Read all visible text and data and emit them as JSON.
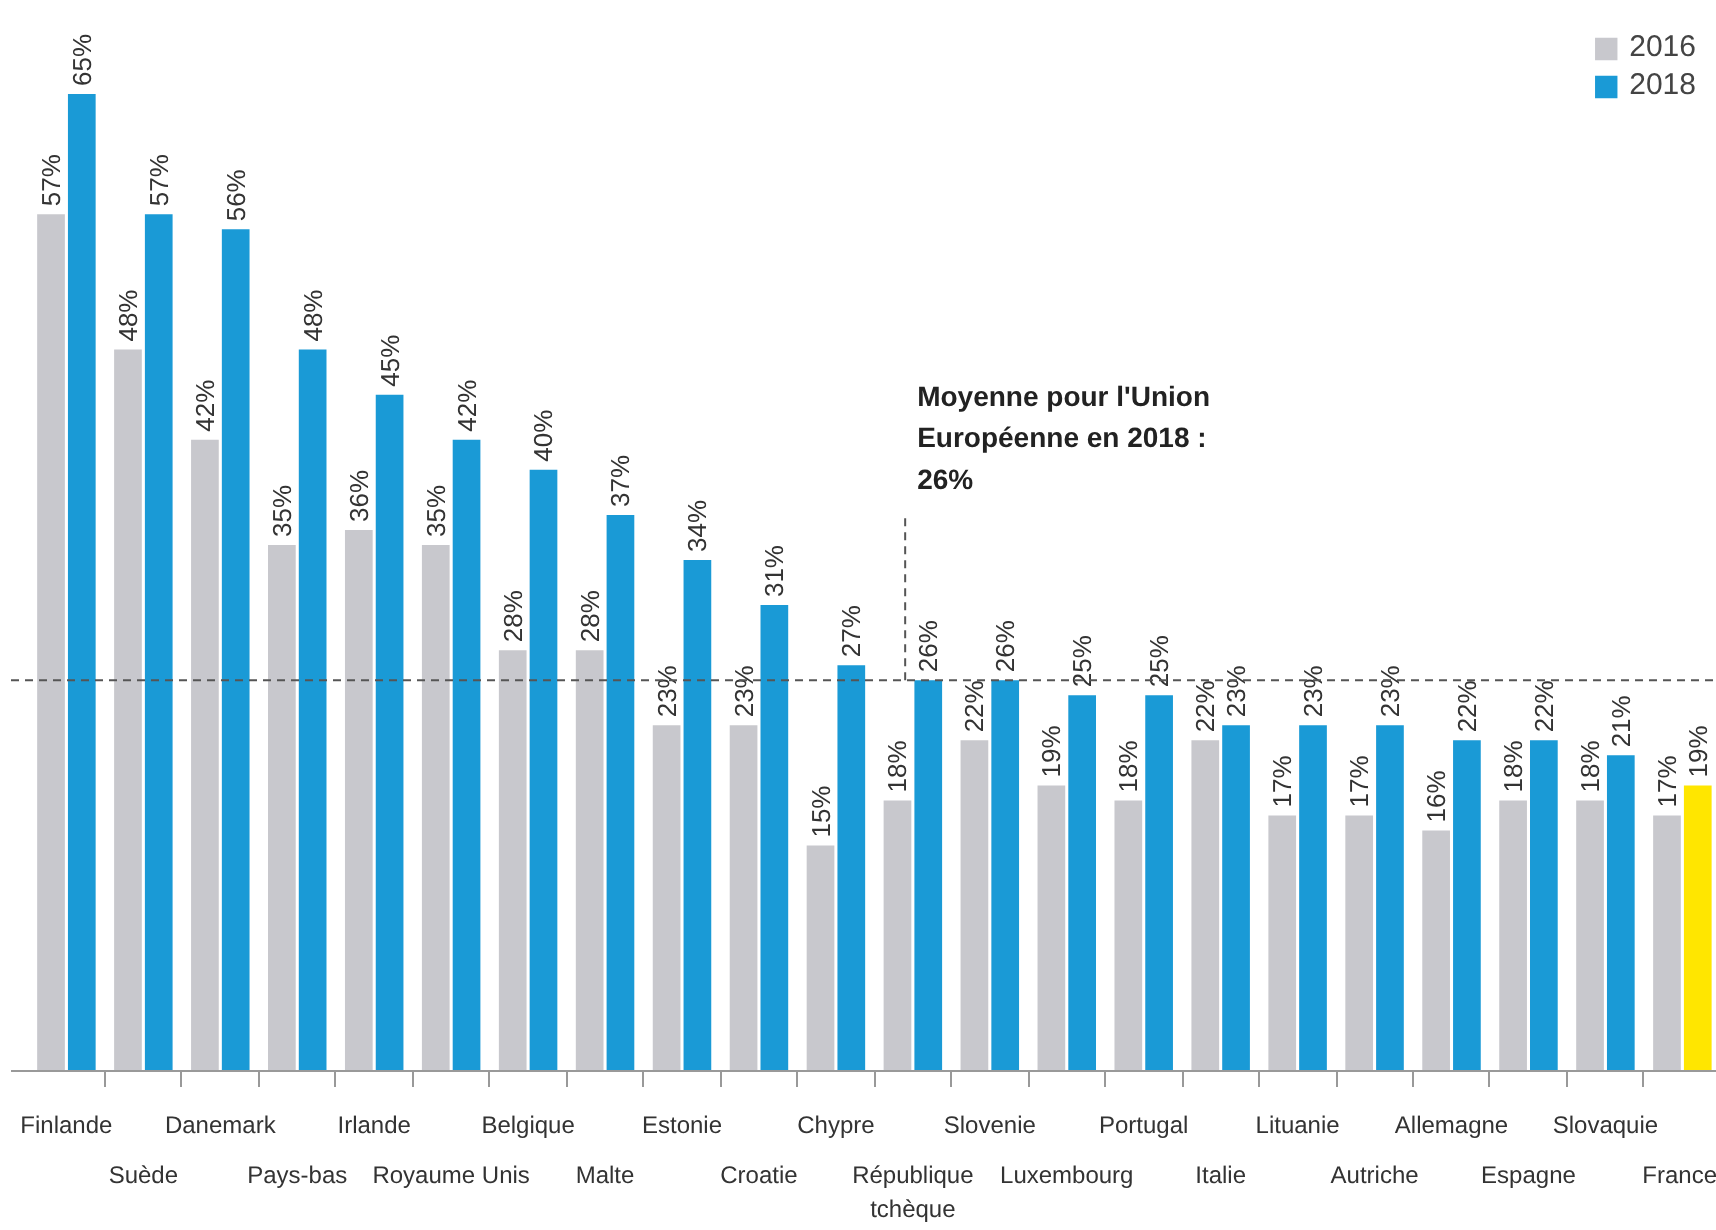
{
  "chart_data": {
    "type": "bar",
    "categories": [
      "Finlande",
      "Suède",
      "Danemark",
      "Pays-bas",
      "Irlande",
      "Royaume Unis",
      "Belgique",
      "Malte",
      "Estonie",
      "Croatie",
      "Chypre",
      "République tchèque",
      "Slovenie",
      "Luxembourg",
      "Portugal",
      "Italie",
      "Lituanie",
      "Autriche",
      "Allemagne",
      "Espagne",
      "Slovaquie",
      "France"
    ],
    "series": [
      {
        "name": "2016",
        "color": "#c8c8cd",
        "values": [
          57,
          48,
          42,
          35,
          36,
          35,
          28,
          28,
          23,
          23,
          15,
          18,
          22,
          19,
          18,
          22,
          17,
          17,
          16,
          18,
          18,
          17
        ],
        "value_labels": [
          "57%",
          "48%",
          "42%",
          "35%",
          "36%",
          "35%",
          "28%",
          "28%",
          "23%",
          "23%",
          "15%",
          "18%",
          "22%",
          "19%",
          "18%",
          "22%",
          "17%",
          "17%",
          "16%",
          "18%",
          "18%",
          "17%"
        ]
      },
      {
        "name": "2018",
        "color": "#1a9ad6",
        "colors": [
          "#1a9ad6",
          "#1a9ad6",
          "#1a9ad6",
          "#1a9ad6",
          "#1a9ad6",
          "#1a9ad6",
          "#1a9ad6",
          "#1a9ad6",
          "#1a9ad6",
          "#1a9ad6",
          "#1a9ad6",
          "#1a9ad6",
          "#1a9ad6",
          "#1a9ad6",
          "#1a9ad6",
          "#1a9ad6",
          "#1a9ad6",
          "#1a9ad6",
          "#1a9ad6",
          "#1a9ad6",
          "#1a9ad6",
          "#ffe600"
        ],
        "values": [
          65,
          57,
          56,
          48,
          45,
          42,
          40,
          37,
          34,
          31,
          27,
          26,
          26,
          25,
          25,
          23,
          23,
          23,
          22,
          22,
          21,
          19
        ],
        "value_labels": [
          "65%",
          "57%",
          "56%",
          "48%",
          "45%",
          "42%",
          "40%",
          "37%",
          "34%",
          "31%",
          "27%",
          "26%",
          "26%",
          "25%",
          "25%",
          "23%",
          "23%",
          "23%",
          "22%",
          "22%",
          "21%",
          "19%"
        ]
      }
    ],
    "tick_labels": "x",
    "grid": false,
    "legend": "top right",
    "ref_lines": [
      {
        "axis": "y",
        "value": 26,
        "label": "Moyenne pour l'Union Européenne en 2018 : 26%",
        "color": "#555555",
        "line_style": "dashed"
      }
    ]
  }
}
